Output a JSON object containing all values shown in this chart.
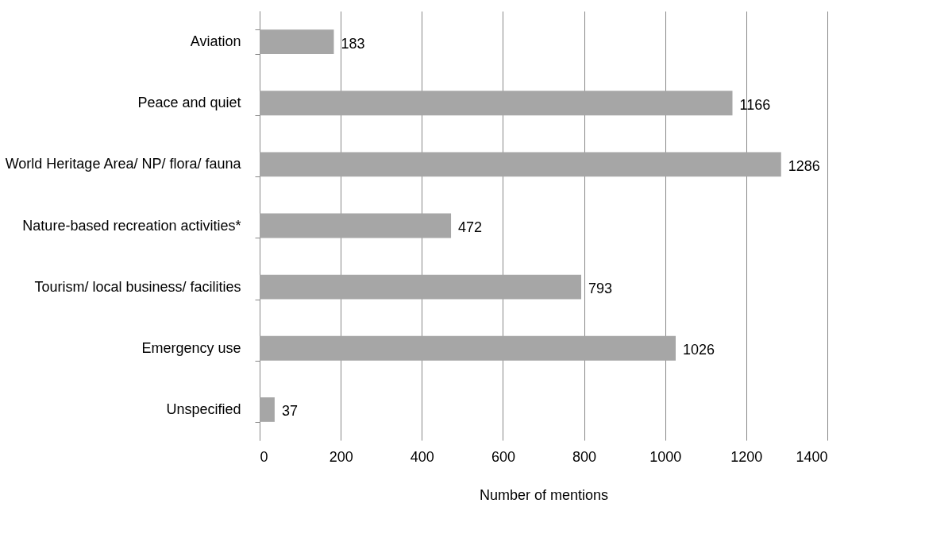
{
  "chart_data": {
    "type": "bar",
    "orientation": "horizontal",
    "xlabel": "Number of mentions",
    "categories": [
      "Aviation",
      "Peace and quiet",
      "World Heritage Area/ NP/ flora/ fauna",
      "Nature-based recreation activities*",
      "Tourism/ local business/ facilities",
      "Emergency use",
      "Unspecified"
    ],
    "values": [
      183,
      1166,
      1286,
      472,
      793,
      1026,
      37
    ],
    "color": "#a6a6a6",
    "xlim": [
      0,
      1400
    ],
    "xticks": [
      0,
      200,
      400,
      600,
      800,
      1000,
      1200,
      1400
    ],
    "grid": "x",
    "data_labels": true
  }
}
